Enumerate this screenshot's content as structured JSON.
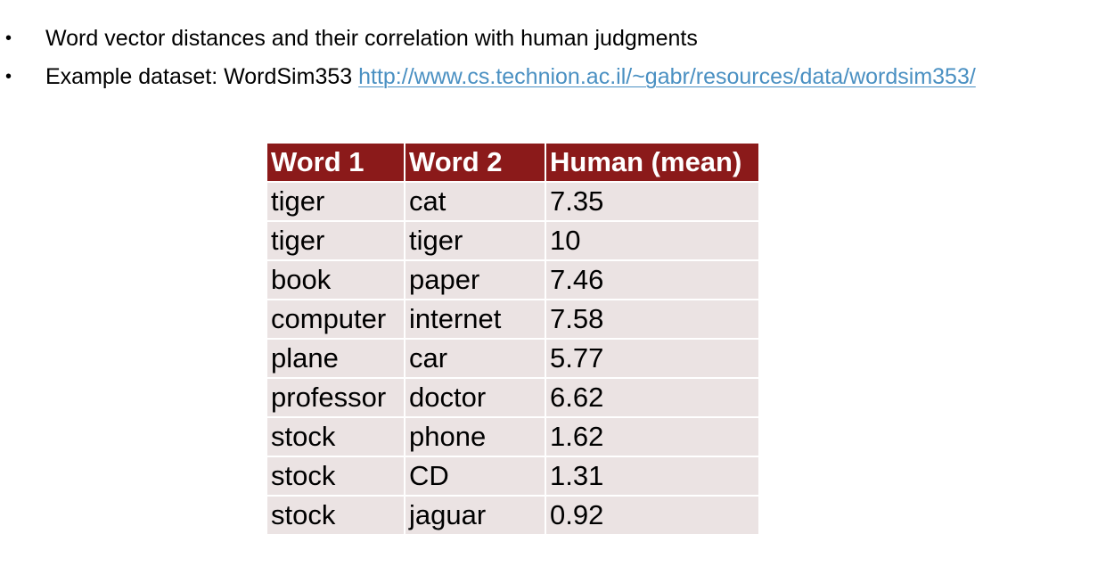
{
  "bullets": [
    {
      "marker": "•",
      "text": "Word vector distances and their correlation with human judgments"
    },
    {
      "marker": "•",
      "text": "Example dataset: WordSim353 ",
      "link_text": "http://www.cs.technion.ac.il/~gabr/resources/data/wordsim353/"
    }
  ],
  "table": {
    "headers": [
      "Word 1",
      "Word 2",
      "Human (mean)"
    ],
    "rows": [
      [
        "tiger",
        "cat",
        "7.35"
      ],
      [
        "tiger",
        "tiger",
        "10"
      ],
      [
        "book",
        "paper",
        "7.46"
      ],
      [
        "computer",
        "internet",
        "7.58"
      ],
      [
        "plane",
        "car",
        "5.77"
      ],
      [
        "professor",
        "doctor",
        "6.62"
      ],
      [
        "stock",
        "phone",
        "1.62"
      ],
      [
        "stock",
        "CD",
        "1.31"
      ],
      [
        "stock",
        "jaguar",
        "0.92"
      ]
    ]
  },
  "colors": {
    "header_bg": "#8b1a1a",
    "row_bg": "#ebe3e3",
    "link": "#4a90c2"
  }
}
